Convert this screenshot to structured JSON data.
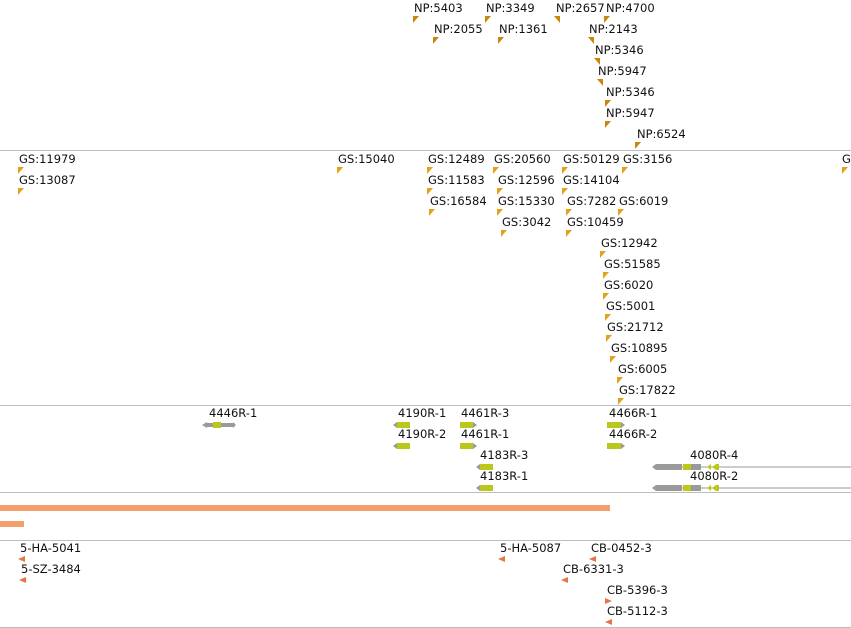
{
  "colors": {
    "np_marker": "#c8860e",
    "gs_marker": "#e3a21a",
    "gene_gray": "#9a9a9a",
    "gene_green": "#b9c81a",
    "coverage": "#f4a06a",
    "sample_marker": "#e8734a",
    "divider": "#bdbdbd"
  },
  "tracks": {
    "np": {
      "features": [
        {
          "label": "NP:5403"
        },
        {
          "label": "NP:3349"
        },
        {
          "label": "NP:2657"
        },
        {
          "label": "NP:4700"
        },
        {
          "label": "NP:2055"
        },
        {
          "label": "NP:1361"
        },
        {
          "label": "NP:2143"
        },
        {
          "label": "NP:5346"
        },
        {
          "label": "NP:5947"
        },
        {
          "label": "NP:5346"
        },
        {
          "label": "NP:5947"
        },
        {
          "label": "NP:6524"
        }
      ]
    },
    "gs": {
      "features": [
        {
          "label": "GS:11979"
        },
        {
          "label": "GS:13087"
        },
        {
          "label": "GS:15040"
        },
        {
          "label": "GS:12489"
        },
        {
          "label": "GS:11583"
        },
        {
          "label": "GS:16584"
        },
        {
          "label": "GS:20560"
        },
        {
          "label": "GS:12596"
        },
        {
          "label": "GS:15330"
        },
        {
          "label": "GS:3042"
        },
        {
          "label": "GS:50129"
        },
        {
          "label": "GS:14104"
        },
        {
          "label": "GS:7282"
        },
        {
          "label": "GS:10459"
        },
        {
          "label": "GS:3156"
        },
        {
          "label": "GS:6019"
        },
        {
          "label": "GS:12942"
        },
        {
          "label": "GS:51585"
        },
        {
          "label": "GS:6020"
        },
        {
          "label": "GS:5001"
        },
        {
          "label": "GS:21712"
        },
        {
          "label": "GS:10895"
        },
        {
          "label": "GS:6005"
        },
        {
          "label": "GS:17822"
        },
        {
          "label": "G"
        }
      ]
    },
    "genes": {
      "features": [
        {
          "label": "4446R-1"
        },
        {
          "label": "4190R-1"
        },
        {
          "label": "4190R-2"
        },
        {
          "label": "4461R-3"
        },
        {
          "label": "4461R-1"
        },
        {
          "label": "4183R-3"
        },
        {
          "label": "4183R-1"
        },
        {
          "label": "4466R-1"
        },
        {
          "label": "4466R-2"
        },
        {
          "label": "4080R-4"
        },
        {
          "label": "4080R-2"
        }
      ]
    },
    "samples": {
      "features": [
        {
          "label": "5-HA-5041"
        },
        {
          "label": "5-SZ-3484"
        },
        {
          "label": "5-HA-5087"
        },
        {
          "label": "CB-0452-3"
        },
        {
          "label": "CB-6331-3"
        },
        {
          "label": "CB-5396-3"
        },
        {
          "label": "CB-5112-3"
        }
      ]
    }
  }
}
